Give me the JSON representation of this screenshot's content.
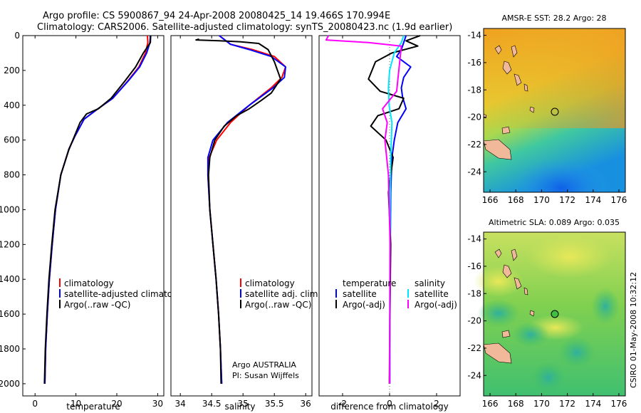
{
  "figure": {
    "title_line1": "Argo profile: CS 5900867_94 24-Apr-2008 20080425_14 19.466S 170.994E",
    "title_line2": "Climatology: CARS2006. Satellite-adjusted climatology: synTS_20080423.nc (1.9d earlier)",
    "credit_line1": "Argo AUSTRALIA",
    "credit_line2": "PI: Susan Wijffels",
    "side_stamp": "CSIRO 01-May-2008 10:32:12"
  },
  "colors": {
    "climatology": "#ff0000",
    "satellite": "#0000ff",
    "argo": "#000000",
    "salinity_satellite": "#00e5ff",
    "salinity_argo_adj": "#ff00ff",
    "land": "#f2b89a"
  },
  "chart_data": [
    {
      "type": "line",
      "panel": "temperature",
      "xlabel": "temperature",
      "ylabel": "",
      "xlim": [
        -3,
        31.5
      ],
      "ylim": [
        2070,
        0
      ],
      "xticks": [
        0,
        10,
        20,
        30
      ],
      "yticks": [
        0,
        200,
        400,
        600,
        800,
        1000,
        1200,
        1400,
        1600,
        1800,
        2000
      ],
      "legend": [
        "climatology",
        "satellite-adjusted climatology",
        "Argo(..raw -QC)"
      ],
      "legend_position": "lower-left",
      "series": [
        {
          "name": "climatology",
          "color": "#ff0000",
          "x": [
            27.5,
            27.6,
            27.0,
            25.4,
            22.7,
            19.0,
            15.4,
            12.0,
            9.7,
            8.3,
            6.3,
            5.0,
            4.2,
            3.5,
            3.0,
            2.6,
            2.4
          ],
          "y": [
            0,
            40,
            100,
            180,
            260,
            360,
            420,
            480,
            580,
            650,
            800,
            1000,
            1200,
            1400,
            1600,
            1800,
            2000
          ]
        },
        {
          "name": "satellite-adjusted climatology",
          "color": "#0000ff",
          "x": [
            28.2,
            28.1,
            27.3,
            25.6,
            22.8,
            19.0,
            15.4,
            12.0,
            9.7,
            8.3,
            6.3,
            5.0,
            4.2,
            3.5,
            3.0,
            2.6,
            2.4
          ],
          "y": [
            0,
            40,
            100,
            180,
            260,
            360,
            420,
            480,
            580,
            650,
            800,
            1000,
            1200,
            1400,
            1600,
            1800,
            2000
          ]
        },
        {
          "name": "Argo(..raw -QC)",
          "color": "#000000",
          "x": [
            28.3,
            28.2,
            26.5,
            24.6,
            22.0,
            18.6,
            15.5,
            12.6,
            11.0,
            9.6,
            8.2,
            6.3,
            4.9,
            4.1,
            3.4,
            2.9,
            2.5,
            2.3
          ],
          "y": [
            0,
            40,
            100,
            180,
            260,
            360,
            420,
            450,
            500,
            580,
            660,
            800,
            1000,
            1200,
            1400,
            1600,
            1800,
            2000
          ]
        }
      ]
    },
    {
      "type": "line",
      "panel": "salinity",
      "xlabel": "salinity",
      "ylabel": "",
      "xlim": [
        33.85,
        36.1
      ],
      "ylim": [
        2070,
        0
      ],
      "xticks": [
        34,
        34.5,
        35,
        35.5,
        36
      ],
      "legend": [
        "climatology",
        "satellite adj. clim.",
        "Argo(..raw -QC)"
      ],
      "legend_position": "lower-right",
      "series": [
        {
          "name": "climatology",
          "color": "#ff0000",
          "x": [
            34.62,
            34.8,
            35.15,
            35.5,
            35.68,
            35.62,
            35.45,
            35.1,
            34.8,
            34.58,
            34.46,
            34.44,
            34.47,
            34.52,
            34.57,
            34.61,
            34.64,
            34.66
          ],
          "y": [
            0,
            50,
            80,
            120,
            180,
            240,
            300,
            400,
            500,
            600,
            700,
            800,
            1000,
            1200,
            1400,
            1600,
            1800,
            2000
          ]
        },
        {
          "name": "satellite adj. clim.",
          "color": "#0000ff",
          "x": [
            34.62,
            34.8,
            35.1,
            35.45,
            35.68,
            35.66,
            35.48,
            35.1,
            34.75,
            34.52,
            34.44,
            34.44,
            34.47,
            34.52,
            34.57,
            34.61,
            34.64,
            34.66
          ],
          "y": [
            0,
            50,
            80,
            120,
            180,
            240,
            300,
            400,
            500,
            600,
            700,
            800,
            1000,
            1200,
            1400,
            1600,
            1800,
            2000
          ]
        },
        {
          "name": "Argo(..raw -QC)",
          "color": "#000000",
          "x": [
            34.3,
            34.25,
            34.62,
            34.95,
            35.25,
            35.4,
            35.5,
            35.6,
            35.45,
            35.3,
            35.1,
            34.9,
            34.7,
            34.55,
            34.47,
            34.45,
            34.47,
            34.52,
            34.57,
            34.61,
            34.64,
            34.65
          ],
          "y": [
            20,
            25,
            30,
            35,
            45,
            80,
            150,
            250,
            330,
            370,
            420,
            460,
            520,
            600,
            700,
            800,
            1000,
            1200,
            1400,
            1600,
            1800,
            2000
          ]
        }
      ]
    },
    {
      "type": "line",
      "panel": "difference",
      "xlabel": "difference from climatology",
      "ylabel": "",
      "xlim": [
        -3,
        3
      ],
      "ylim": [
        2070,
        0
      ],
      "xticks": [
        -2,
        0,
        2
      ],
      "legend": [
        "temperature",
        "satellite",
        "Argo(-adj)",
        "salinity",
        "satellite",
        "Argo(-adj)"
      ],
      "legend_position": "lower-center",
      "series": [
        {
          "name": "temperature satellite",
          "color": "#0000ff",
          "x": [
            0.7,
            0.6,
            0.5,
            0.3,
            0.9,
            0.6,
            0.5,
            0.55,
            0.7,
            0.35,
            0.2,
            0.1,
            0.05,
            0.03,
            0.02,
            0.01,
            0.01
          ],
          "y": [
            0,
            40,
            80,
            120,
            180,
            240,
            300,
            350,
            420,
            500,
            600,
            700,
            900,
            1200,
            1500,
            1800,
            2000
          ]
        },
        {
          "name": "temperature Argo(-adj)",
          "color": "#000000",
          "x": [
            1.3,
            0.7,
            1.2,
            0.1,
            -0.6,
            -0.9,
            -0.4,
            0.6,
            0.4,
            -0.5,
            -0.8,
            -0.15,
            0.15,
            -0.05,
            0.05,
            0.02,
            0.0,
            -0.01
          ],
          "y": [
            0,
            30,
            60,
            100,
            150,
            250,
            320,
            360,
            420,
            460,
            520,
            600,
            700,
            900,
            1200,
            1500,
            1800,
            2000
          ]
        },
        {
          "name": "salinity satellite",
          "color": "#00e5ff",
          "x": [
            0.6,
            0.5,
            0.2,
            0.0,
            -0.05,
            -0.02,
            0.1,
            0.05,
            0.02,
            0.01,
            0.0
          ],
          "y": [
            0,
            40,
            100,
            200,
            300,
            400,
            500,
            700,
            1000,
            1500,
            2000
          ]
        },
        {
          "name": "salinity Argo(-adj)",
          "color": "#ff00ff",
          "x": [
            -2.6,
            -2.7,
            -0.9,
            0.5,
            0.3,
            -0.3,
            -0.1,
            -0.2,
            -0.05,
            0.02,
            0.0
          ],
          "y": [
            0,
            25,
            40,
            60,
            320,
            420,
            500,
            600,
            800,
            1200,
            2000
          ]
        }
      ]
    },
    {
      "type": "heatmap",
      "panel": "sst-map",
      "title": "AMSR-E SST: 28.2 Argo: 28",
      "xlim": [
        165.5,
        176.5
      ],
      "ylim": [
        -25.5,
        -13.5
      ],
      "xticks": [
        166,
        168,
        170,
        172,
        174,
        176
      ],
      "yticks": [
        -14,
        -16,
        -18,
        -20,
        -22,
        -24
      ],
      "argo_position": {
        "lon": 170.994,
        "lat": -19.466
      }
    },
    {
      "type": "heatmap",
      "panel": "sla-map",
      "title": "Altimetric SLA: 0.089 Argo: 0.035",
      "xlim": [
        165.5,
        176.5
      ],
      "ylim": [
        -25.5,
        -13.5
      ],
      "xticks": [
        166,
        168,
        170,
        172,
        174,
        176
      ],
      "yticks": [
        -14,
        -16,
        -18,
        -20,
        -22,
        -24
      ],
      "argo_position": {
        "lon": 170.994,
        "lat": -19.466
      }
    }
  ]
}
